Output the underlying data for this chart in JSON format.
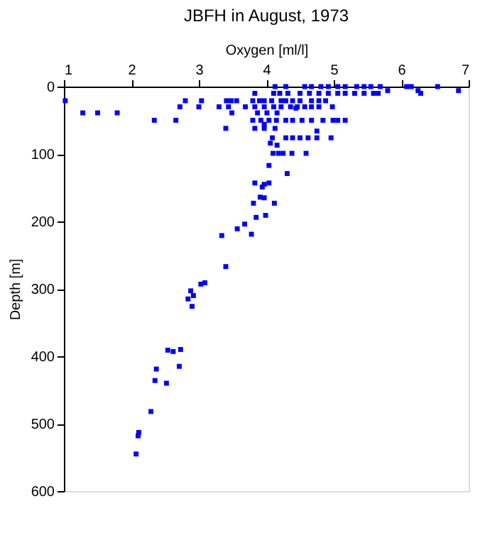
{
  "chart_data": {
    "type": "scatter",
    "title": "JBFH in August, 1973",
    "xlabel": "Oxygen [ml/l]",
    "ylabel": "Depth [m]",
    "x": [
      4.13,
      4.29,
      4.57,
      4.67,
      4.81,
      4.92,
      5.06,
      5.17,
      5.34,
      5.45,
      5.55,
      5.69,
      6.08,
      6.15,
      6.54,
      6.85,
      3.83,
      4.11,
      4.2,
      4.32,
      4.5,
      4.64,
      4.78,
      4.92,
      5.06,
      5.17,
      5.31,
      5.45,
      5.59,
      5.66,
      5.8,
      6.25,
      6.29,
      1.02,
      2.8,
      3.04,
      3.41,
      3.48,
      3.56,
      3.8,
      3.9,
      3.97,
      4.08,
      4.22,
      4.29,
      4.39,
      4.5,
      4.67,
      4.78,
      4.88,
      2.72,
      3.0,
      3.3,
      3.44,
      3.69,
      3.83,
      3.97,
      4.11,
      4.22,
      4.36,
      4.46,
      4.57,
      4.67,
      4.78,
      4.98,
      4.44,
      1.28,
      1.5,
      1.79,
      3.49,
      3.87,
      4.01,
      4.16,
      2.34,
      2.66,
      3.8,
      3.92,
      4.04,
      4.15,
      4.29,
      4.39,
      4.53,
      4.67,
      4.84,
      4.99,
      5.06,
      5.17,
      3.97,
      3.4,
      3.83,
      3.97,
      4.13,
      4.75,
      4.09,
      4.29,
      4.39,
      4.5,
      4.62,
      4.75,
      4.96,
      4.06,
      4.16,
      4.1,
      4.18,
      4.25,
      4.38,
      4.59,
      4.04,
      4.31,
      3.83,
      3.94,
      4.04,
      3.97,
      3.91,
      3.97,
      3.81,
      4.12,
      3.85,
      3.99,
      3.68,
      3.57,
      3.78,
      3.34,
      3.4,
      3.09,
      3.03,
      2.88,
      2.92,
      2.84,
      2.9,
      2.54,
      2.62,
      2.73,
      2.71,
      2.37,
      2.35,
      2.52,
      2.29,
      2.11,
      2.1,
      2.07
    ],
    "values": [
      0,
      0,
      0,
      0,
      0,
      0,
      0,
      0,
      0,
      0,
      0,
      0,
      0,
      0,
      0,
      6,
      10,
      10,
      10,
      10,
      10,
      10,
      10,
      10,
      10,
      10,
      10,
      10,
      10,
      10,
      6,
      6,
      10,
      21,
      21,
      21,
      21,
      21,
      21,
      21,
      21,
      21,
      21,
      21,
      21,
      21,
      21,
      21,
      21,
      21,
      30,
      30,
      30,
      30,
      30,
      30,
      30,
      30,
      30,
      30,
      30,
      30,
      30,
      30,
      30,
      32,
      39,
      39,
      39,
      39,
      39,
      39,
      39,
      50,
      50,
      50,
      50,
      50,
      50,
      50,
      50,
      50,
      50,
      50,
      50,
      50,
      50,
      56,
      62,
      62,
      62,
      62,
      66,
      76,
      76,
      76,
      76,
      76,
      76,
      76,
      84,
      87,
      99,
      99,
      99,
      99,
      99,
      117,
      129,
      143,
      149,
      143,
      145,
      164,
      165,
      173,
      173,
      194,
      191,
      204,
      211,
      219,
      221,
      267,
      291,
      293,
      303,
      310,
      315,
      326,
      391,
      393,
      390,
      415,
      419,
      436,
      440,
      482,
      513,
      518,
      545
    ],
    "color": "#0000ff",
    "marker": "square",
    "grid": false,
    "xlim": [
      1,
      7
    ],
    "xticks": [
      1,
      2,
      3,
      4,
      5,
      6,
      7
    ],
    "ylim": [
      600,
      0
    ],
    "yticks": [
      0,
      100,
      200,
      300,
      400,
      500,
      600
    ]
  }
}
